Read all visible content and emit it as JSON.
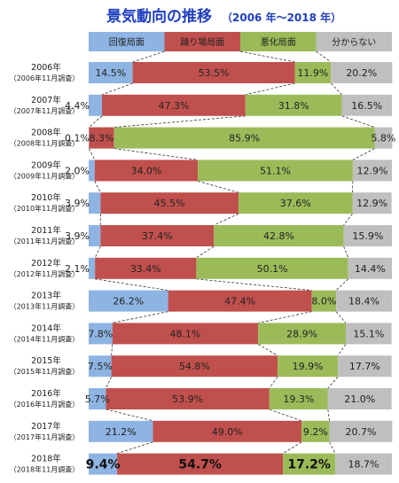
{
  "title": {
    "main": "景気動向の推移",
    "sub": "（2006 年〜2018 年）"
  },
  "colors": {
    "recovery": "#8db4e2",
    "plateau": "#c0504d",
    "worsening": "#9bbb59",
    "unknown": "#bfbfbf",
    "title": "#1f3fbf"
  },
  "chart_data": {
    "type": "bar",
    "orientation": "horizontal",
    "stacked": true,
    "stack_total": 100,
    "unit": "%",
    "legend_position": "top",
    "title": "景気動向の推移（2006 年〜2018 年）",
    "categories": [
      {
        "year": "2006年",
        "note": "（2006年11月調査）"
      },
      {
        "year": "2007年",
        "note": "（2007年11月調査）"
      },
      {
        "year": "2008年",
        "note": "（2008年11月調査）"
      },
      {
        "year": "2009年",
        "note": "（2009年11月調査）"
      },
      {
        "year": "2010年",
        "note": "（2010年11月調査）"
      },
      {
        "year": "2011年",
        "note": "（2011年11月調査）"
      },
      {
        "year": "2012年",
        "note": "（2012年11月調査）"
      },
      {
        "year": "2013年",
        "note": "（2013年11月調査）"
      },
      {
        "year": "2014年",
        "note": "（2014年11月調査）"
      },
      {
        "year": "2015年",
        "note": "（2015年11月調査）"
      },
      {
        "year": "2016年",
        "note": "（2016年11月調査）"
      },
      {
        "year": "2017年",
        "note": "（2017年11月調査）"
      },
      {
        "year": "2018年",
        "note": "（2018年11月調査）"
      }
    ],
    "series": [
      {
        "name": "回復局面",
        "labels": [
          "14.5%",
          "4.4%",
          "0.1%",
          "2.0%",
          "3.9%",
          "3.9%",
          "2.1%",
          "26.2%",
          "7.8%",
          "7.5%",
          "5.7%",
          "21.2%",
          "9.4%"
        ],
        "values": [
          14.5,
          4.4,
          0.1,
          2.0,
          3.9,
          3.9,
          2.1,
          26.2,
          7.8,
          7.5,
          5.7,
          21.2,
          9.4
        ]
      },
      {
        "name": "踊り場局面",
        "labels": [
          "53.5%",
          "47.3%",
          "8.3%",
          "34.0%",
          "45.5%",
          "37.4%",
          "33.4%",
          "47.4%",
          "48.1%",
          "54.8%",
          "53.9%",
          "49.0%",
          "54.7%"
        ],
        "values": [
          53.5,
          47.3,
          8.3,
          34.0,
          45.5,
          37.4,
          33.4,
          47.4,
          48.1,
          54.8,
          53.9,
          49.0,
          54.7
        ]
      },
      {
        "name": "悪化局面",
        "labels": [
          "11.9%",
          "31.8%",
          "85.9%",
          "51.1%",
          "37.6%",
          "42.8%",
          "50.1%",
          "8.0%",
          "28.9%",
          "19.9%",
          "19.3%",
          "9.2%",
          "17.2%"
        ],
        "values": [
          11.9,
          31.8,
          85.9,
          51.1,
          37.6,
          42.8,
          50.1,
          8.0,
          28.9,
          19.9,
          19.3,
          9.2,
          17.2
        ]
      },
      {
        "name": "分からない",
        "labels": [
          "20.2%",
          "16.5%",
          "5.8%",
          "12.9%",
          "12.9%",
          "15.9%",
          "14.4%",
          "18.4%",
          "15.1%",
          "17.7%",
          "21.0%",
          "20.7%",
          "18.7%"
        ],
        "values": [
          20.2,
          16.5,
          5.8,
          12.9,
          12.9,
          15.9,
          14.4,
          18.4,
          15.1,
          17.7,
          21.0,
          20.7,
          18.7
        ]
      }
    ]
  }
}
